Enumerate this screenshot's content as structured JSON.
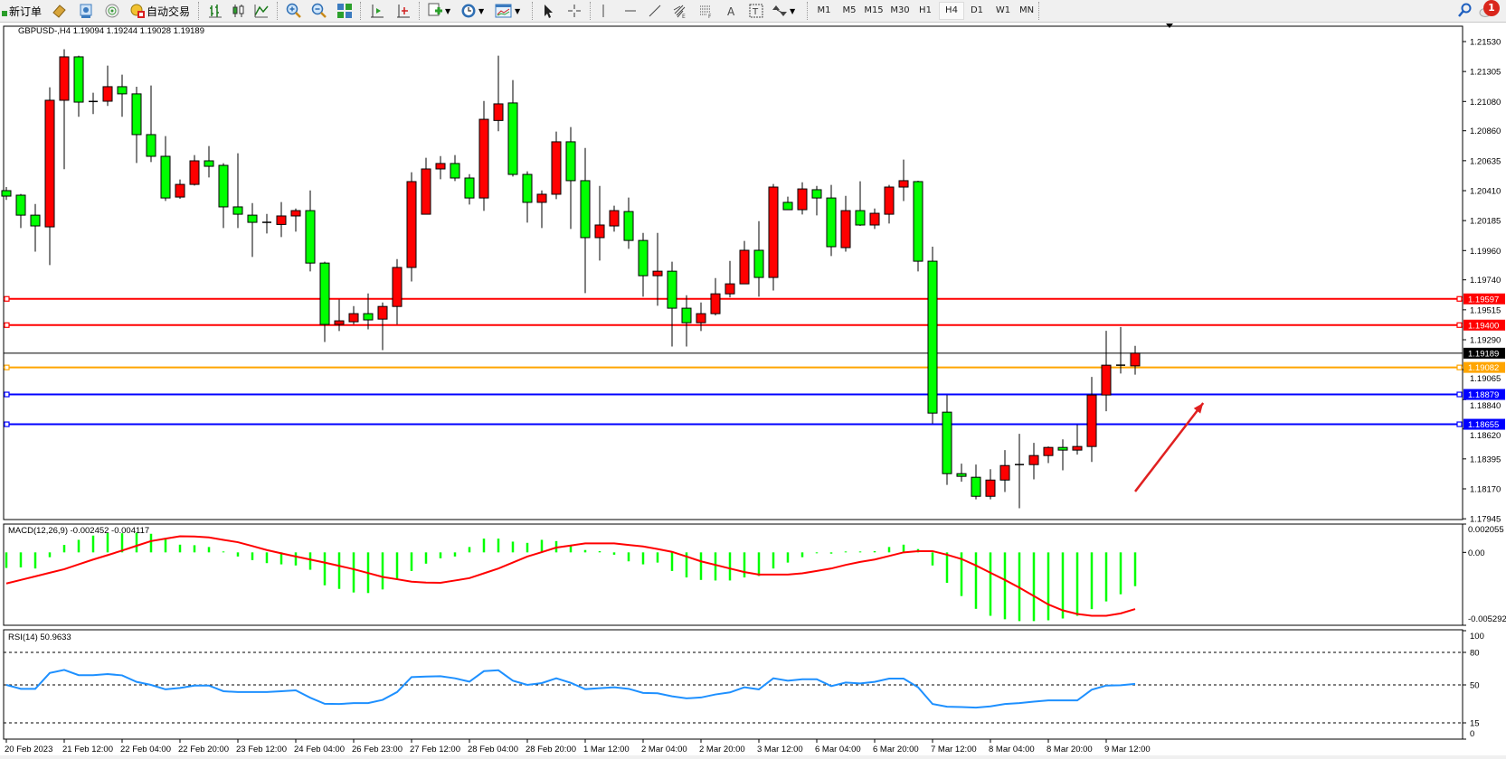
{
  "toolbar": {
    "new_order": "新订单",
    "auto_trading": "自动交易",
    "timeframes": [
      "M1",
      "M5",
      "M15",
      "M30",
      "H1",
      "H4",
      "D1",
      "W1",
      "MN"
    ],
    "active_timeframe": "H4",
    "notification_count": "1",
    "icons": [
      "new-order-icon",
      "navigator-icon",
      "terminal-icon",
      "signals-icon",
      "auto-trading-icon",
      "bar-chart-icon",
      "candlestick-icon",
      "line-chart-icon",
      "zoom-in-icon",
      "zoom-out-icon",
      "tile-windows-icon",
      "chart-shift-icon",
      "auto-scroll-icon",
      "indicators-icon",
      "periods-icon",
      "templates-icon",
      "cursor-icon",
      "crosshair-icon",
      "vertical-line-icon",
      "horizontal-line-icon",
      "trendline-icon",
      "fibonacci-icon",
      "fibonacci-fan-icon",
      "text-icon",
      "text-label-icon",
      "arrows-icon",
      "search-icon",
      "notification-icon"
    ]
  },
  "chart_data": {
    "type": "candlestick",
    "title": "GBPUSD-,H4  1.19094 1.19244 1.19028 1.19189",
    "colors": {
      "bull": "#ff0000",
      "bear": "#00ff00",
      "wick": "#000000",
      "background": "#ffffff"
    },
    "ylim": [
      1.17945,
      1.2153
    ],
    "price_ticks": [
      "1.21530",
      "1.21305",
      "1.21080",
      "1.20860",
      "1.20635",
      "1.20410",
      "1.20185",
      "1.19960",
      "1.19740",
      "1.19515",
      "1.19290",
      "1.19065",
      "1.18840",
      "1.18620",
      "1.18395",
      "1.18170",
      "1.17945"
    ],
    "current_price": {
      "value": 1.19189,
      "label": "1.19189",
      "color": "#000000"
    },
    "levels": [
      {
        "price": 1.19597,
        "label": "1.19597",
        "color": "#ff0000"
      },
      {
        "price": 1.194,
        "label": "1.19400",
        "color": "#ff0000"
      },
      {
        "price": 1.19082,
        "label": "1.19082",
        "color": "#ffa500"
      },
      {
        "price": 1.18879,
        "label": "1.18879",
        "color": "#0000ff"
      },
      {
        "price": 1.18655,
        "label": "1.18655",
        "color": "#0000ff"
      }
    ],
    "annotation_arrow": {
      "from": {
        "index": 78,
        "price": 1.1815
      },
      "to": {
        "index": 82.7,
        "price": 1.18815
      },
      "color": "#e02020"
    },
    "candles_ohlc": [
      [
        1.2041,
        1.20437,
        1.2034,
        1.20369
      ],
      [
        1.20376,
        1.20385,
        1.20129,
        1.20226
      ],
      [
        1.20226,
        1.2031,
        1.19952,
        1.20145
      ],
      [
        1.20138,
        1.21186,
        1.19851,
        1.21089
      ],
      [
        1.21089,
        1.21472,
        1.20571,
        1.21415
      ],
      [
        1.21415,
        1.21424,
        1.20965,
        1.21075
      ],
      [
        1.21075,
        1.21146,
        1.20985,
        1.2108
      ],
      [
        1.21082,
        1.21349,
        1.21046,
        1.21191
      ],
      [
        1.21191,
        1.21281,
        1.20965,
        1.21137
      ],
      [
        1.21137,
        1.21191,
        1.20618,
        1.20831
      ],
      [
        1.20831,
        1.212,
        1.20625,
        1.20668
      ],
      [
        1.20668,
        1.2082,
        1.20333,
        1.20355
      ],
      [
        1.20362,
        1.20494,
        1.20349,
        1.20457
      ],
      [
        1.20457,
        1.20677,
        1.20448,
        1.20634
      ],
      [
        1.20634,
        1.20745,
        1.20509,
        1.20593
      ],
      [
        1.206,
        1.20616,
        1.20129,
        1.20288
      ],
      [
        1.20288,
        1.20691,
        1.20129,
        1.20233
      ],
      [
        1.20226,
        1.20317,
        1.19912,
        1.20172
      ],
      [
        1.20172,
        1.20235,
        1.20088,
        1.20163
      ],
      [
        1.20156,
        1.20324,
        1.20061,
        1.2022
      ],
      [
        1.2022,
        1.20276,
        1.20102,
        1.2026
      ],
      [
        1.2026,
        1.20412,
        1.19803,
        1.19866
      ],
      [
        1.19866,
        1.19876,
        1.19273,
        1.19405
      ],
      [
        1.19405,
        1.19592,
        1.19355,
        1.19432
      ],
      [
        1.19425,
        1.19543,
        1.19405,
        1.19486
      ],
      [
        1.19486,
        1.19638,
        1.19368,
        1.19439
      ],
      [
        1.19445,
        1.1957,
        1.19212,
        1.1954
      ],
      [
        1.1954,
        1.19896,
        1.19405,
        1.19833
      ],
      [
        1.19833,
        1.20548,
        1.19728,
        1.20478
      ],
      [
        1.20233,
        1.20657,
        1.20233,
        1.20573
      ],
      [
        1.20573,
        1.2067,
        1.20496,
        1.20614
      ],
      [
        1.20614,
        1.20677,
        1.20482,
        1.20505
      ],
      [
        1.20505,
        1.20534,
        1.20306,
        1.20355
      ],
      [
        1.20355,
        1.21084,
        1.20258,
        1.20946
      ],
      [
        1.20937,
        1.21424,
        1.20856,
        1.21062
      ],
      [
        1.21069,
        1.21241,
        1.20516,
        1.20532
      ],
      [
        1.20532,
        1.20555,
        1.2017,
        1.20322
      ],
      [
        1.20322,
        1.20412,
        1.20129,
        1.20383
      ],
      [
        1.20383,
        1.20854,
        1.20346,
        1.20777
      ],
      [
        1.20777,
        1.20888,
        1.20122,
        1.20485
      ],
      [
        1.20485,
        1.20731,
        1.1964,
        1.20057
      ],
      [
        1.20057,
        1.20446,
        1.19885,
        1.20152
      ],
      [
        1.20145,
        1.20297,
        1.20102,
        1.2026
      ],
      [
        1.20253,
        1.20358,
        1.19973,
        1.20036
      ],
      [
        1.20036,
        1.20093,
        1.19613,
        1.19771
      ],
      [
        1.19771,
        1.20093,
        1.19545,
        1.19805
      ],
      [
        1.19805,
        1.19876,
        1.19239,
        1.19527
      ],
      [
        1.19527,
        1.19624,
        1.19239,
        1.19418
      ],
      [
        1.19418,
        1.1957,
        1.19355,
        1.19486
      ],
      [
        1.19486,
        1.19753,
        1.19472,
        1.19635
      ],
      [
        1.19635,
        1.19882,
        1.19608,
        1.1971
      ],
      [
        1.1971,
        1.20032,
        1.1971,
        1.19962
      ],
      [
        1.19962,
        1.20181,
        1.19613,
        1.19758
      ],
      [
        1.19758,
        1.2046,
        1.1966,
        1.20437
      ],
      [
        1.20322,
        1.20365,
        1.20267,
        1.20267
      ],
      [
        1.20267,
        1.20473,
        1.20231,
        1.20423
      ],
      [
        1.20417,
        1.20446,
        1.20224,
        1.20355
      ],
      [
        1.20355,
        1.20453,
        1.19919,
        1.19989
      ],
      [
        1.19982,
        1.20371,
        1.19952,
        1.2026
      ],
      [
        1.2026,
        1.2048,
        1.20145,
        1.20152
      ],
      [
        1.20152,
        1.20276,
        1.20122,
        1.2024
      ],
      [
        1.20233,
        1.20453,
        1.20163,
        1.20437
      ],
      [
        1.20437,
        1.20643,
        1.20332,
        1.20485
      ],
      [
        1.20478,
        1.20485,
        1.19803,
        1.1988
      ],
      [
        1.1988,
        1.19989,
        1.1866,
        1.18739
      ],
      [
        1.18746,
        1.18873,
        1.182,
        1.18284
      ],
      [
        1.18284,
        1.18359,
        1.18223,
        1.18264
      ],
      [
        1.18257,
        1.18352,
        1.18091,
        1.18114
      ],
      [
        1.18114,
        1.18318,
        1.18091,
        1.18236
      ],
      [
        1.18236,
        1.18461,
        1.18146,
        1.18345
      ],
      [
        1.18345,
        1.18583,
        1.18024,
        1.18352
      ],
      [
        1.18352,
        1.18515,
        1.18241,
        1.1842
      ],
      [
        1.1842,
        1.18488,
        1.18363,
        1.18481
      ],
      [
        1.18481,
        1.18542,
        1.18309,
        1.18461
      ],
      [
        1.18461,
        1.18651,
        1.18427,
        1.18488
      ],
      [
        1.18488,
        1.19011,
        1.18372,
        1.18875
      ],
      [
        1.18875,
        1.19357,
        1.18753,
        1.19099
      ],
      [
        1.19099,
        1.19386,
        1.19036,
        1.19094
      ],
      [
        1.19094,
        1.19244,
        1.19028,
        1.19189
      ]
    ],
    "time_labels": [
      {
        "index": 0,
        "label": "20 Feb 2023"
      },
      {
        "index": 4,
        "label": "21 Feb 12:00"
      },
      {
        "index": 8,
        "label": "22 Feb 04:00"
      },
      {
        "index": 12,
        "label": "22 Feb 20:00"
      },
      {
        "index": 16,
        "label": "23 Feb 12:00"
      },
      {
        "index": 20,
        "label": "24 Feb 04:00"
      },
      {
        "index": 24,
        "label": "26 Feb 23:00"
      },
      {
        "index": 28,
        "label": "27 Feb 12:00"
      },
      {
        "index": 32,
        "label": "28 Feb 04:00"
      },
      {
        "index": 36,
        "label": "28 Feb 20:00"
      },
      {
        "index": 40,
        "label": "1 Mar 12:00"
      },
      {
        "index": 44,
        "label": "2 Mar 04:00"
      },
      {
        "index": 48,
        "label": "2 Mar 20:00"
      },
      {
        "index": 52,
        "label": "3 Mar 12:00"
      },
      {
        "index": 56,
        "label": "6 Mar 04:00"
      },
      {
        "index": 60,
        "label": "6 Mar 20:00"
      },
      {
        "index": 64,
        "label": "7 Mar 12:00"
      },
      {
        "index": 68,
        "label": "8 Mar 04:00"
      },
      {
        "index": 72,
        "label": "8 Mar 20:00"
      },
      {
        "index": 76,
        "label": "9 Mar 12:00"
      }
    ],
    "macd": {
      "label": "MACD(12,26,9) -0.002452 -0.004117",
      "ylim": [
        -0.005292,
        0.002055
      ],
      "ticks": [
        "0.002055",
        "0.00",
        "-0.005292"
      ],
      "histogram_color": "#00ff00",
      "signal_color": "#ff0000",
      "histogram": [
        -0.00113,
        -0.00109,
        -0.00117,
        -0.00035,
        0.00054,
        0.00091,
        0.00122,
        0.00143,
        0.00139,
        0.00143,
        0.00135,
        0.00095,
        0.00056,
        0.00052,
        0.00039,
        4e-05,
        -0.0003,
        -0.00056,
        -0.00078,
        -0.00087,
        -0.00095,
        -0.00126,
        -0.00239,
        -0.00265,
        -0.00291,
        -0.00295,
        -0.00269,
        -0.002,
        -0.00135,
        -0.00082,
        -0.00043,
        -0.0003,
        0.00039,
        0.001,
        0.001,
        0.00078,
        0.00069,
        0.00091,
        0.00082,
        0.00048,
        0.00017,
        9e-05,
        -0.00017,
        -0.00065,
        -0.00087,
        -0.00074,
        -0.00135,
        -0.00182,
        -0.002,
        -0.00204,
        -0.00204,
        -0.00182,
        -0.00171,
        -0.00117,
        -0.00074,
        -0.00035,
        -4e-05,
        -9e-05,
        0,
        4e-05,
        9e-05,
        0.00039,
        0.00056,
        0.00024,
        -0.00095,
        -0.00221,
        -0.00317,
        -0.0041,
        -0.0046,
        -0.00486,
        -0.00499,
        -0.00499,
        -0.00493,
        -0.0048,
        -0.0046,
        -0.00412,
        -0.00356,
        -0.00304,
        -0.002452
      ],
      "signal": [
        -0.00226,
        -0.002,
        -0.00174,
        -0.00148,
        -0.00122,
        -0.00087,
        -0.00052,
        -0.0002,
        0.00013,
        0.00048,
        0.00082,
        0.001,
        0.00117,
        0.00115,
        0.00109,
        0.00091,
        0.00074,
        0.00046,
        0.00017,
        -7e-05,
        -0.0003,
        -0.00052,
        -0.00074,
        -0.00098,
        -0.00122,
        -0.0015,
        -0.00178,
        -0.00195,
        -0.00213,
        -0.00219,
        -0.00221,
        -0.00204,
        -0.00187,
        -0.00152,
        -0.00117,
        -0.00074,
        -0.0003,
        2e-05,
        0.00035,
        0.0005,
        0.00065,
        0.00065,
        0.00065,
        0.00054,
        0.00043,
        0.00024,
        4e-05,
        -0.0003,
        -0.00065,
        -0.00091,
        -0.00117,
        -0.00143,
        -0.00161,
        -0.00161,
        -0.00161,
        -0.00152,
        -0.00135,
        -0.00117,
        -0.00091,
        -0.00069,
        -0.00052,
        -0.00026,
        0,
        9e-05,
        9e-05,
        -0.00017,
        -0.00048,
        -0.00095,
        -0.00148,
        -0.002,
        -0.00256,
        -0.00317,
        -0.00378,
        -0.00421,
        -0.00447,
        -0.0046,
        -0.0046,
        -0.00443,
        -0.004117
      ]
    },
    "rsi": {
      "label": "RSI(14) 50.9633",
      "ylim": [
        0,
        100
      ],
      "ticks": [
        "100",
        "80",
        "50",
        "15",
        "0"
      ],
      "levels": [
        80,
        50,
        15
      ],
      "line_color": "#1e90ff",
      "values": [
        50,
        46.4,
        46.4,
        61,
        63.8,
        59,
        59,
        60,
        58.8,
        52.8,
        50,
        45.9,
        47.2,
        49.4,
        49.4,
        44.2,
        43.4,
        43.4,
        43.4,
        44.2,
        45,
        38.2,
        32.6,
        32.4,
        33.2,
        33.2,
        36.2,
        43.4,
        57.2,
        57.7,
        58,
        56.1,
        53,
        62.7,
        63.5,
        53.9,
        50,
        51.7,
        56.1,
        51.9,
        46.1,
        47,
        47.8,
        46.4,
        42.6,
        42.3,
        39.5,
        37.6,
        38.4,
        41.2,
        43.1,
        47.8,
        45.9,
        56.1,
        53.9,
        55.2,
        55.2,
        48.9,
        52.2,
        51.4,
        52.8,
        55.8,
        55.8,
        47.8,
        32.4,
        29.9,
        29.6,
        29.1,
        30.2,
        32.4,
        33.2,
        34.6,
        35.7,
        35.7,
        35.7,
        45.6,
        49.4,
        49.7,
        50.9633
      ]
    }
  }
}
